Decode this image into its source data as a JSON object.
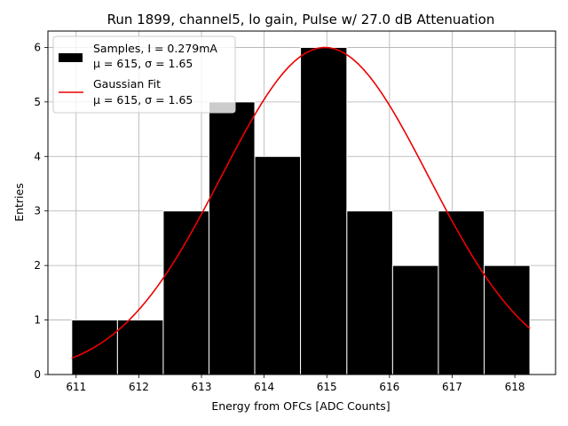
{
  "chart_data": {
    "type": "bar",
    "title": "Run 1899, channel5, lo gain, Pulse w/ 27.0 dB Attenuation",
    "xlabel": "Energy from OFCs [ADC Counts]",
    "ylabel": "Entries",
    "xlim": [
      610.55,
      618.65
    ],
    "ylim": [
      0,
      6.3
    ],
    "xticks": [
      611,
      612,
      613,
      614,
      615,
      616,
      617,
      618
    ],
    "yticks": [
      0,
      1,
      2,
      3,
      4,
      5,
      6
    ],
    "grid": true,
    "legend_position": "top-left",
    "histogram": {
      "name": "Samples, I = 0.279mA",
      "name_line2": "μ = 615, σ = 1.65",
      "color": "#000000",
      "edge_color": "#ffffff",
      "bin_edges": [
        610.93,
        611.66,
        612.39,
        613.12,
        613.85,
        614.58,
        615.32,
        616.05,
        616.78,
        617.51,
        618.24
      ],
      "values": [
        1,
        1,
        3,
        5,
        4,
        6,
        3,
        2,
        3,
        2
      ]
    },
    "fit": {
      "name": "Gaussian Fit",
      "name_line2": "μ = 615, σ = 1.65",
      "color": "#ee0000",
      "amplitude": 6.0,
      "mean": 614.97,
      "sigma": 1.65,
      "x_range": [
        610.93,
        618.24
      ]
    }
  }
}
